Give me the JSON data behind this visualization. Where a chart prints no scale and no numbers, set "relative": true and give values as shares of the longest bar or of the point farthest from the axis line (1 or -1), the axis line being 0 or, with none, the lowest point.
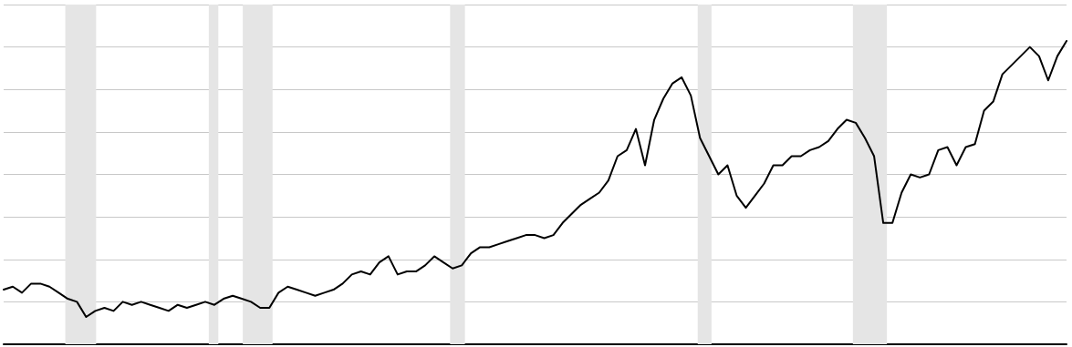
{
  "chart_data": {
    "type": "line",
    "relative": true,
    "grid": "y",
    "marker": "none",
    "line_style": "solid",
    "categories": [
      null,
      null,
      null,
      null,
      null,
      null,
      null,
      null,
      null,
      null,
      null,
      null,
      null,
      null,
      null,
      null,
      null,
      null,
      null,
      null,
      null,
      null,
      null,
      null,
      null,
      null,
      null,
      null,
      null,
      null,
      null,
      null,
      null,
      null,
      null,
      null,
      null,
      null,
      null,
      null,
      null,
      null,
      null,
      null,
      null,
      null,
      null,
      null,
      null,
      null,
      null,
      null,
      null,
      null,
      null,
      null,
      null,
      null,
      null,
      null,
      null,
      null,
      null,
      null,
      null,
      null,
      null,
      null,
      null,
      null,
      null,
      null,
      null,
      null,
      null,
      null,
      null,
      null,
      null,
      null,
      null,
      null,
      null,
      null,
      null,
      null,
      null,
      null,
      null,
      null,
      null,
      null,
      null,
      null,
      null,
      null,
      null,
      null,
      null,
      null,
      null,
      null,
      null,
      null,
      null,
      null,
      null,
      null,
      null,
      null,
      null,
      null,
      null,
      null,
      null,
      null,
      null
    ],
    "series": [
      {
        "color": "#000000",
        "values": [
          0.18,
          0.19,
          0.17,
          0.2,
          0.2,
          0.19,
          0.17,
          0.15,
          0.14,
          0.09,
          0.11,
          0.12,
          0.11,
          0.14,
          0.13,
          0.14,
          0.13,
          0.12,
          0.11,
          0.13,
          0.12,
          0.13,
          0.14,
          0.13,
          0.15,
          0.16,
          0.15,
          0.14,
          0.12,
          0.12,
          0.17,
          0.19,
          0.18,
          0.17,
          0.16,
          0.17,
          0.18,
          0.2,
          0.23,
          0.24,
          0.23,
          0.27,
          0.29,
          0.23,
          0.24,
          0.24,
          0.26,
          0.29,
          0.27,
          0.25,
          0.26,
          0.3,
          0.32,
          0.32,
          0.33,
          0.34,
          0.35,
          0.36,
          0.36,
          0.35,
          0.36,
          0.4,
          0.43,
          0.46,
          0.48,
          0.5,
          0.54,
          0.62,
          0.64,
          0.71,
          0.59,
          0.74,
          0.81,
          0.86,
          0.88,
          0.82,
          0.68,
          0.62,
          0.56,
          0.59,
          0.49,
          0.45,
          0.49,
          0.53,
          0.59,
          0.59,
          0.62,
          0.62,
          0.64,
          0.65,
          0.67,
          0.71,
          0.74,
          0.73,
          0.68,
          0.62,
          0.4,
          0.4,
          0.5,
          0.56,
          0.55,
          0.56,
          0.64,
          0.65,
          0.59,
          0.65,
          0.66,
          0.77,
          0.8,
          0.89,
          0.92,
          0.95,
          0.98,
          0.95,
          0.87,
          0.95,
          1
        ]
      }
    ]
  }
}
